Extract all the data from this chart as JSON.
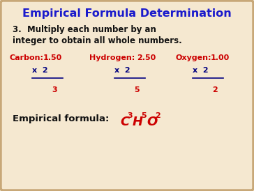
{
  "title": "Empirical Formula Determination",
  "title_color": "#1a1aCC",
  "title_fontsize": 11.5,
  "bg_color": "#F5E8D0",
  "border_color": "#C8A878",
  "step_text_line1": "3.  Multiply each number by an",
  "step_text_line2": "integer to obtain all whole numbers.",
  "step_color": "#111111",
  "step_fontsize": 8.5,
  "label_color": "#CC0000",
  "value_color": "#CC0000",
  "multiplier_color": "#000080",
  "result_color": "#CC0000",
  "carbon_label": "Carbon:",
  "carbon_value": "1.50",
  "hydrogen_label": "Hydrogen:",
  "hydrogen_value": "2.50",
  "oxygen_label": "Oxygen:",
  "oxygen_value": "1.00",
  "multiplier": "x  2",
  "carbon_result": "3",
  "hydrogen_result": "5",
  "oxygen_result": "2",
  "empirical_label": "Empirical formula:",
  "empirical_label_color": "#111111",
  "formula_color": "#CC0000"
}
